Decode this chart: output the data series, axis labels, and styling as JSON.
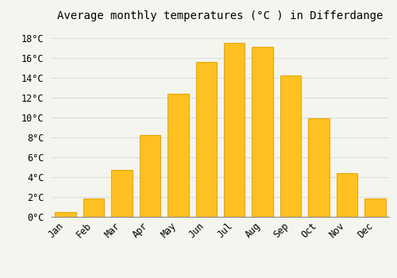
{
  "title": "Average monthly temperatures (°C ) in Differdange",
  "months": [
    "Jan",
    "Feb",
    "Mar",
    "Apr",
    "May",
    "Jun",
    "Jul",
    "Aug",
    "Sep",
    "Oct",
    "Nov",
    "Dec"
  ],
  "values": [
    0.5,
    1.8,
    4.7,
    8.2,
    12.4,
    15.6,
    17.5,
    17.1,
    14.2,
    9.9,
    4.4,
    1.8
  ],
  "bar_color": "#FFC022",
  "bar_edge_color": "#E8A800",
  "background_color": "#F5F5F0",
  "plot_bg_color": "#F5F5F0",
  "grid_color": "#DDDDDD",
  "ylim": [
    0,
    19
  ],
  "yticks": [
    0,
    2,
    4,
    6,
    8,
    10,
    12,
    14,
    16,
    18
  ],
  "ytick_labels": [
    "0°C",
    "2°C",
    "4°C",
    "6°C",
    "8°C",
    "10°C",
    "12°C",
    "14°C",
    "16°C",
    "18°C"
  ],
  "title_fontsize": 10,
  "tick_fontsize": 8.5,
  "bar_width": 0.75
}
